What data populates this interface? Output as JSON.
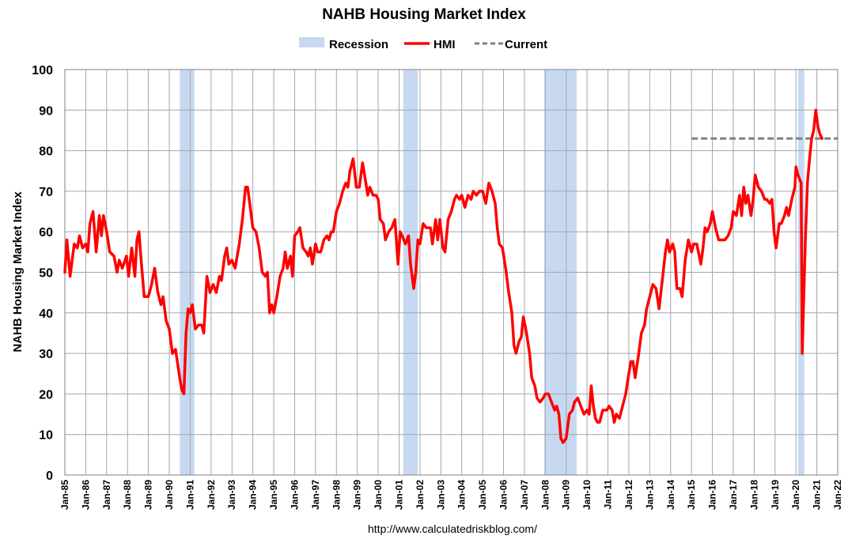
{
  "chart_data": {
    "type": "line",
    "title": "NAHB Housing Market Index",
    "ylabel": "NAHB Housing Market Index",
    "source": "http://www.calculatedriskblog.com/",
    "ylim": [
      0,
      100
    ],
    "yticks": [
      0,
      10,
      20,
      30,
      40,
      50,
      60,
      70,
      80,
      90,
      100
    ],
    "xlim": [
      1985.0,
      2022.0
    ],
    "xticks": [
      "Jan-85",
      "Jan-86",
      "Jan-87",
      "Jan-88",
      "Jan-89",
      "Jan-90",
      "Jan-91",
      "Jan-92",
      "Jan-93",
      "Jan-94",
      "Jan-95",
      "Jan-96",
      "Jan-97",
      "Jan-98",
      "Jan-99",
      "Jan-00",
      "Jan-01",
      "Jan-02",
      "Jan-03",
      "Jan-04",
      "Jan-05",
      "Jan-06",
      "Jan-07",
      "Jan-08",
      "Jan-09",
      "Jan-10",
      "Jan-11",
      "Jan-12",
      "Jan-13",
      "Jan-14",
      "Jan-15",
      "Jan-16",
      "Jan-17",
      "Jan-18",
      "Jan-19",
      "Jan-20",
      "Jan-21",
      "Jan-22"
    ],
    "grid": true,
    "legend": {
      "position": "top-center",
      "items": [
        {
          "label": "Recession",
          "style": "band",
          "color": "#c6d9f1"
        },
        {
          "label": "HMI",
          "style": "line",
          "color": "#ff0000"
        },
        {
          "label": "Current",
          "style": "dashed",
          "color": "#808080"
        }
      ]
    },
    "recessions": [
      {
        "start": 1990.5,
        "end": 1991.2
      },
      {
        "start": 2001.2,
        "end": 2001.9
      },
      {
        "start": 2007.95,
        "end": 2009.5
      },
      {
        "start": 2020.1,
        "end": 2020.4
      }
    ],
    "current": {
      "value": 83,
      "start": 2015.0,
      "end": 2022.0
    },
    "series": [
      {
        "name": "HMI",
        "color": "#ff0000",
        "points": [
          [
            1985.0,
            50
          ],
          [
            1985.1,
            58
          ],
          [
            1985.25,
            49
          ],
          [
            1985.45,
            57
          ],
          [
            1985.6,
            56
          ],
          [
            1985.7,
            59
          ],
          [
            1985.85,
            56
          ],
          [
            1986.0,
            57
          ],
          [
            1986.1,
            55
          ],
          [
            1986.2,
            62
          ],
          [
            1986.35,
            65
          ],
          [
            1986.5,
            55
          ],
          [
            1986.65,
            64
          ],
          [
            1986.75,
            59
          ],
          [
            1986.85,
            64
          ],
          [
            1987.0,
            60
          ],
          [
            1987.15,
            55
          ],
          [
            1987.35,
            54
          ],
          [
            1987.5,
            50
          ],
          [
            1987.6,
            53
          ],
          [
            1987.75,
            51
          ],
          [
            1987.95,
            54
          ],
          [
            1988.05,
            49
          ],
          [
            1988.2,
            56
          ],
          [
            1988.35,
            49
          ],
          [
            1988.45,
            58
          ],
          [
            1988.55,
            60
          ],
          [
            1988.65,
            53
          ],
          [
            1988.8,
            44
          ],
          [
            1989.0,
            44
          ],
          [
            1989.15,
            47
          ],
          [
            1989.3,
            51
          ],
          [
            1989.45,
            45
          ],
          [
            1989.6,
            42
          ],
          [
            1989.7,
            44
          ],
          [
            1989.85,
            38
          ],
          [
            1990.0,
            36
          ],
          [
            1990.15,
            30
          ],
          [
            1990.3,
            31
          ],
          [
            1990.5,
            24
          ],
          [
            1990.6,
            21
          ],
          [
            1990.7,
            20
          ],
          [
            1990.8,
            35
          ],
          [
            1990.9,
            41
          ],
          [
            1991.0,
            40
          ],
          [
            1991.1,
            42
          ],
          [
            1991.25,
            36
          ],
          [
            1991.4,
            37
          ],
          [
            1991.55,
            37
          ],
          [
            1991.65,
            35
          ],
          [
            1991.8,
            49
          ],
          [
            1991.95,
            45
          ],
          [
            1992.1,
            47
          ],
          [
            1992.25,
            45
          ],
          [
            1992.4,
            49
          ],
          [
            1992.5,
            48
          ],
          [
            1992.65,
            54
          ],
          [
            1992.75,
            56
          ],
          [
            1992.85,
            52
          ],
          [
            1993.0,
            53
          ],
          [
            1993.15,
            51
          ],
          [
            1993.35,
            57
          ],
          [
            1993.5,
            63
          ],
          [
            1993.65,
            71
          ],
          [
            1993.75,
            71
          ],
          [
            1993.85,
            67
          ],
          [
            1994.0,
            61
          ],
          [
            1994.15,
            60
          ],
          [
            1994.3,
            56
          ],
          [
            1994.45,
            50
          ],
          [
            1994.6,
            49
          ],
          [
            1994.7,
            50
          ],
          [
            1994.8,
            40
          ],
          [
            1994.9,
            42
          ],
          [
            1995.0,
            40
          ],
          [
            1995.15,
            44
          ],
          [
            1995.3,
            49
          ],
          [
            1995.45,
            51
          ],
          [
            1995.55,
            55
          ],
          [
            1995.65,
            51
          ],
          [
            1995.8,
            54
          ],
          [
            1995.9,
            49
          ],
          [
            1996.0,
            59
          ],
          [
            1996.15,
            60
          ],
          [
            1996.25,
            61
          ],
          [
            1996.4,
            56
          ],
          [
            1996.55,
            55
          ],
          [
            1996.65,
            54
          ],
          [
            1996.75,
            56
          ],
          [
            1996.85,
            52
          ],
          [
            1997.0,
            57
          ],
          [
            1997.1,
            55
          ],
          [
            1997.25,
            55
          ],
          [
            1997.4,
            58
          ],
          [
            1997.55,
            59
          ],
          [
            1997.65,
            58
          ],
          [
            1997.75,
            60
          ],
          [
            1997.85,
            60
          ],
          [
            1998.0,
            65
          ],
          [
            1998.15,
            67
          ],
          [
            1998.3,
            70
          ],
          [
            1998.45,
            72
          ],
          [
            1998.55,
            71
          ],
          [
            1998.65,
            75
          ],
          [
            1998.8,
            78
          ],
          [
            1998.95,
            71
          ],
          [
            1999.1,
            71
          ],
          [
            1999.25,
            77
          ],
          [
            1999.35,
            74
          ],
          [
            1999.5,
            69
          ],
          [
            1999.6,
            71
          ],
          [
            1999.75,
            69
          ],
          [
            1999.9,
            69
          ],
          [
            2000.0,
            68
          ],
          [
            2000.1,
            63
          ],
          [
            2000.25,
            62
          ],
          [
            2000.35,
            58
          ],
          [
            2000.5,
            60
          ],
          [
            2000.65,
            61
          ],
          [
            2000.8,
            63
          ],
          [
            2000.95,
            52
          ],
          [
            2001.05,
            60
          ],
          [
            2001.15,
            59
          ],
          [
            2001.3,
            57
          ],
          [
            2001.45,
            59
          ],
          [
            2001.55,
            52
          ],
          [
            2001.7,
            46
          ],
          [
            2001.8,
            50
          ],
          [
            2001.9,
            58
          ],
          [
            2002.0,
            57
          ],
          [
            2002.15,
            62
          ],
          [
            2002.3,
            61
          ],
          [
            2002.5,
            61
          ],
          [
            2002.6,
            57
          ],
          [
            2002.75,
            63
          ],
          [
            2002.85,
            58
          ],
          [
            2002.95,
            63
          ],
          [
            2003.1,
            56
          ],
          [
            2003.2,
            55
          ],
          [
            2003.35,
            63
          ],
          [
            2003.5,
            65
          ],
          [
            2003.65,
            68
          ],
          [
            2003.75,
            69
          ],
          [
            2003.9,
            68
          ],
          [
            2004.0,
            69
          ],
          [
            2004.15,
            66
          ],
          [
            2004.3,
            69
          ],
          [
            2004.45,
            68
          ],
          [
            2004.55,
            70
          ],
          [
            2004.7,
            69
          ],
          [
            2004.85,
            70
          ],
          [
            2005.0,
            70
          ],
          [
            2005.15,
            67
          ],
          [
            2005.3,
            72
          ],
          [
            2005.45,
            70
          ],
          [
            2005.6,
            67
          ],
          [
            2005.7,
            61
          ],
          [
            2005.8,
            57
          ],
          [
            2005.95,
            56
          ],
          [
            2006.1,
            51
          ],
          [
            2006.25,
            45
          ],
          [
            2006.4,
            40
          ],
          [
            2006.5,
            32
          ],
          [
            2006.6,
            30
          ],
          [
            2006.75,
            33
          ],
          [
            2006.85,
            34
          ],
          [
            2006.95,
            39
          ],
          [
            2007.1,
            35
          ],
          [
            2007.25,
            30
          ],
          [
            2007.35,
            24
          ],
          [
            2007.5,
            22
          ],
          [
            2007.6,
            19
          ],
          [
            2007.75,
            18
          ],
          [
            2007.9,
            19
          ],
          [
            2008.0,
            20
          ],
          [
            2008.15,
            20
          ],
          [
            2008.3,
            18
          ],
          [
            2008.45,
            16
          ],
          [
            2008.55,
            17
          ],
          [
            2008.65,
            15
          ],
          [
            2008.75,
            9
          ],
          [
            2008.85,
            8
          ],
          [
            2009.0,
            9
          ],
          [
            2009.15,
            15
          ],
          [
            2009.3,
            16
          ],
          [
            2009.4,
            18
          ],
          [
            2009.55,
            19
          ],
          [
            2009.7,
            17
          ],
          [
            2009.85,
            15
          ],
          [
            2010.0,
            16
          ],
          [
            2010.1,
            15
          ],
          [
            2010.2,
            22
          ],
          [
            2010.3,
            17
          ],
          [
            2010.4,
            14
          ],
          [
            2010.5,
            13
          ],
          [
            2010.6,
            13
          ],
          [
            2010.75,
            16
          ],
          [
            2010.95,
            16
          ],
          [
            2011.05,
            17
          ],
          [
            2011.2,
            16
          ],
          [
            2011.3,
            13
          ],
          [
            2011.4,
            15
          ],
          [
            2011.55,
            14
          ],
          [
            2011.7,
            17
          ],
          [
            2011.85,
            20
          ],
          [
            2012.0,
            25
          ],
          [
            2012.1,
            28
          ],
          [
            2012.2,
            28
          ],
          [
            2012.3,
            24
          ],
          [
            2012.45,
            29
          ],
          [
            2012.6,
            35
          ],
          [
            2012.75,
            37
          ],
          [
            2012.85,
            41
          ],
          [
            2013.0,
            44
          ],
          [
            2013.15,
            47
          ],
          [
            2013.3,
            46
          ],
          [
            2013.45,
            41
          ],
          [
            2013.6,
            48
          ],
          [
            2013.75,
            55
          ],
          [
            2013.85,
            58
          ],
          [
            2013.95,
            55
          ],
          [
            2014.1,
            57
          ],
          [
            2014.2,
            55
          ],
          [
            2014.3,
            46
          ],
          [
            2014.45,
            46
          ],
          [
            2014.55,
            44
          ],
          [
            2014.7,
            53
          ],
          [
            2014.85,
            58
          ],
          [
            2015.0,
            55
          ],
          [
            2015.1,
            57
          ],
          [
            2015.25,
            57
          ],
          [
            2015.45,
            52
          ],
          [
            2015.55,
            56
          ],
          [
            2015.65,
            61
          ],
          [
            2015.75,
            60
          ],
          [
            2015.9,
            62
          ],
          [
            2016.0,
            65
          ],
          [
            2016.15,
            61
          ],
          [
            2016.3,
            58
          ],
          [
            2016.45,
            58
          ],
          [
            2016.6,
            58
          ],
          [
            2016.75,
            59
          ],
          [
            2016.9,
            61
          ],
          [
            2017.0,
            65
          ],
          [
            2017.15,
            64
          ],
          [
            2017.3,
            69
          ],
          [
            2017.4,
            64
          ],
          [
            2017.5,
            71
          ],
          [
            2017.6,
            67
          ],
          [
            2017.7,
            69
          ],
          [
            2017.85,
            64
          ],
          [
            2017.95,
            68
          ],
          [
            2018.05,
            74
          ],
          [
            2018.2,
            71
          ],
          [
            2018.35,
            70
          ],
          [
            2018.5,
            68
          ],
          [
            2018.6,
            68
          ],
          [
            2018.75,
            67
          ],
          [
            2018.85,
            68
          ],
          [
            2018.95,
            60
          ],
          [
            2019.05,
            56
          ],
          [
            2019.2,
            62
          ],
          [
            2019.3,
            62
          ],
          [
            2019.45,
            64
          ],
          [
            2019.55,
            66
          ],
          [
            2019.65,
            64
          ],
          [
            2019.8,
            68
          ],
          [
            2019.95,
            71
          ],
          [
            2020.0,
            76
          ],
          [
            2020.1,
            74
          ],
          [
            2020.25,
            72
          ],
          [
            2020.3,
            30
          ],
          [
            2020.45,
            58
          ],
          [
            2020.55,
            72
          ],
          [
            2020.65,
            78
          ],
          [
            2020.75,
            83
          ],
          [
            2020.85,
            85
          ],
          [
            2020.95,
            90
          ],
          [
            2021.05,
            86
          ],
          [
            2021.15,
            84
          ],
          [
            2021.25,
            83
          ]
        ]
      }
    ]
  }
}
